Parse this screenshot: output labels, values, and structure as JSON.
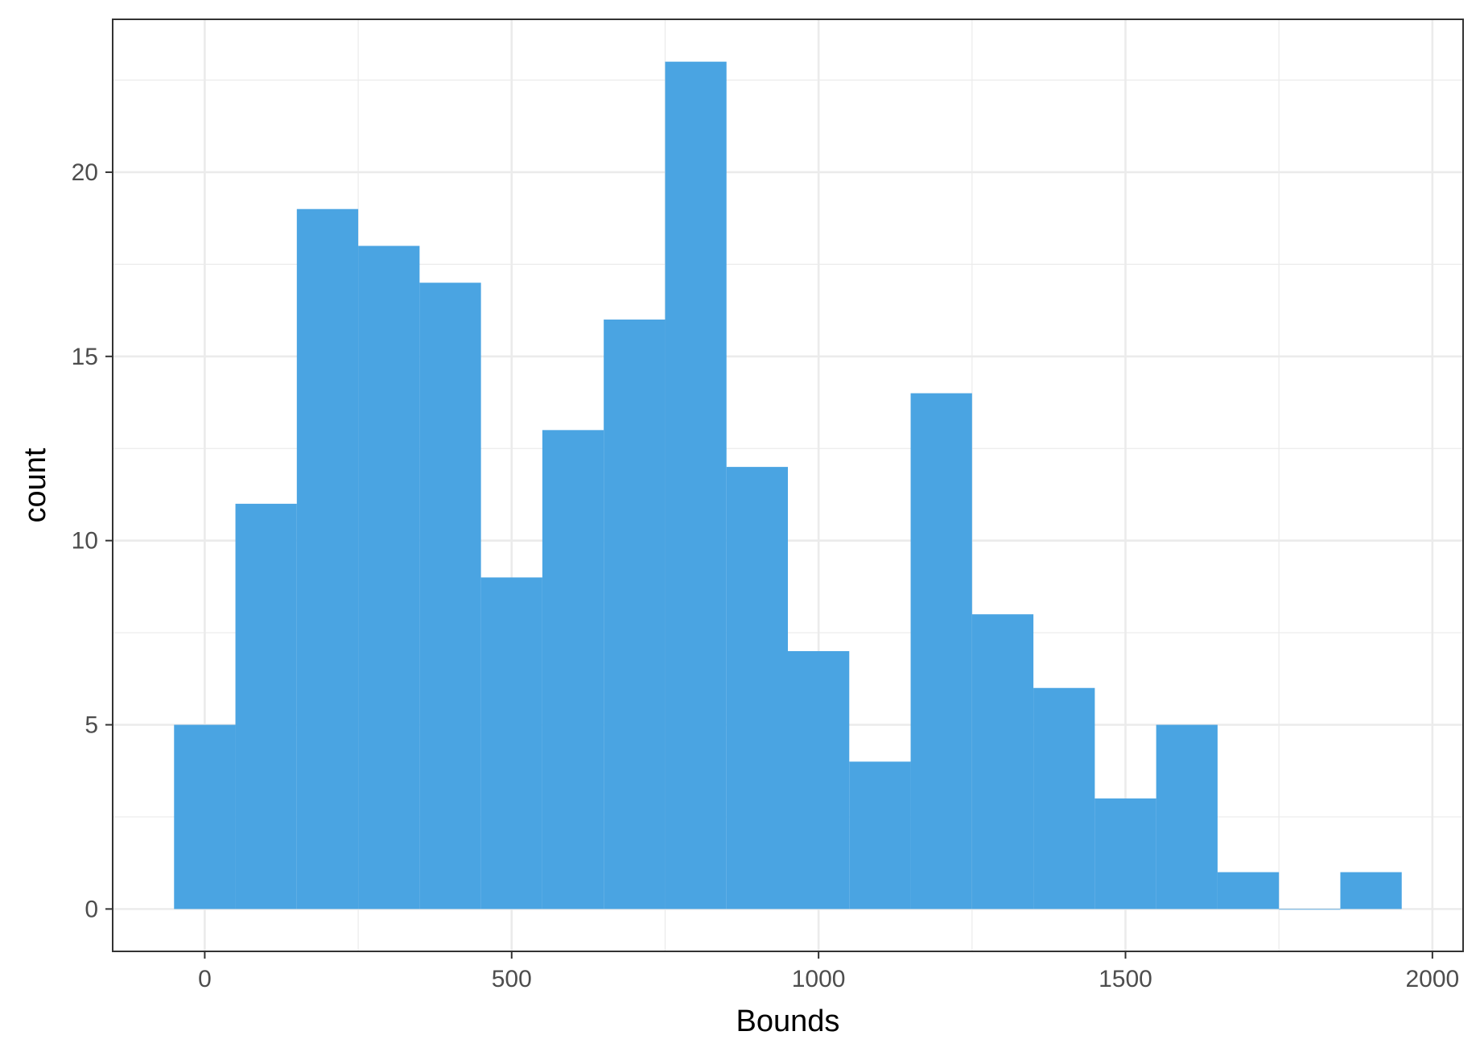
{
  "chart_data": {
    "type": "bar",
    "subtype": "histogram",
    "title": "",
    "xlabel": "Bounds",
    "ylabel": "count",
    "bin_width": 100,
    "bins": [
      {
        "x": 0,
        "count": 5
      },
      {
        "x": 100,
        "count": 11
      },
      {
        "x": 200,
        "count": 19
      },
      {
        "x": 300,
        "count": 18
      },
      {
        "x": 400,
        "count": 17
      },
      {
        "x": 500,
        "count": 9
      },
      {
        "x": 600,
        "count": 13
      },
      {
        "x": 700,
        "count": 16
      },
      {
        "x": 800,
        "count": 23
      },
      {
        "x": 900,
        "count": 12
      },
      {
        "x": 1000,
        "count": 7
      },
      {
        "x": 1100,
        "count": 4
      },
      {
        "x": 1200,
        "count": 14
      },
      {
        "x": 1300,
        "count": 8
      },
      {
        "x": 1400,
        "count": 6
      },
      {
        "x": 1500,
        "count": 3
      },
      {
        "x": 1600,
        "count": 5
      },
      {
        "x": 1700,
        "count": 1
      },
      {
        "x": 1800,
        "count": 0
      },
      {
        "x": 1900,
        "count": 1
      }
    ],
    "xlim": [
      -150,
      2050
    ],
    "ylim": [
      -1.15,
      24.15
    ],
    "x_ticks": [
      "0",
      "500",
      "1000",
      "1500",
      "2000"
    ],
    "y_ticks": [
      "0",
      "5",
      "10",
      "15",
      "20"
    ],
    "grid": true,
    "bar_color": "#4aa4e2",
    "grid_color": "#ebebeb",
    "panel_border_color": "#333333"
  }
}
